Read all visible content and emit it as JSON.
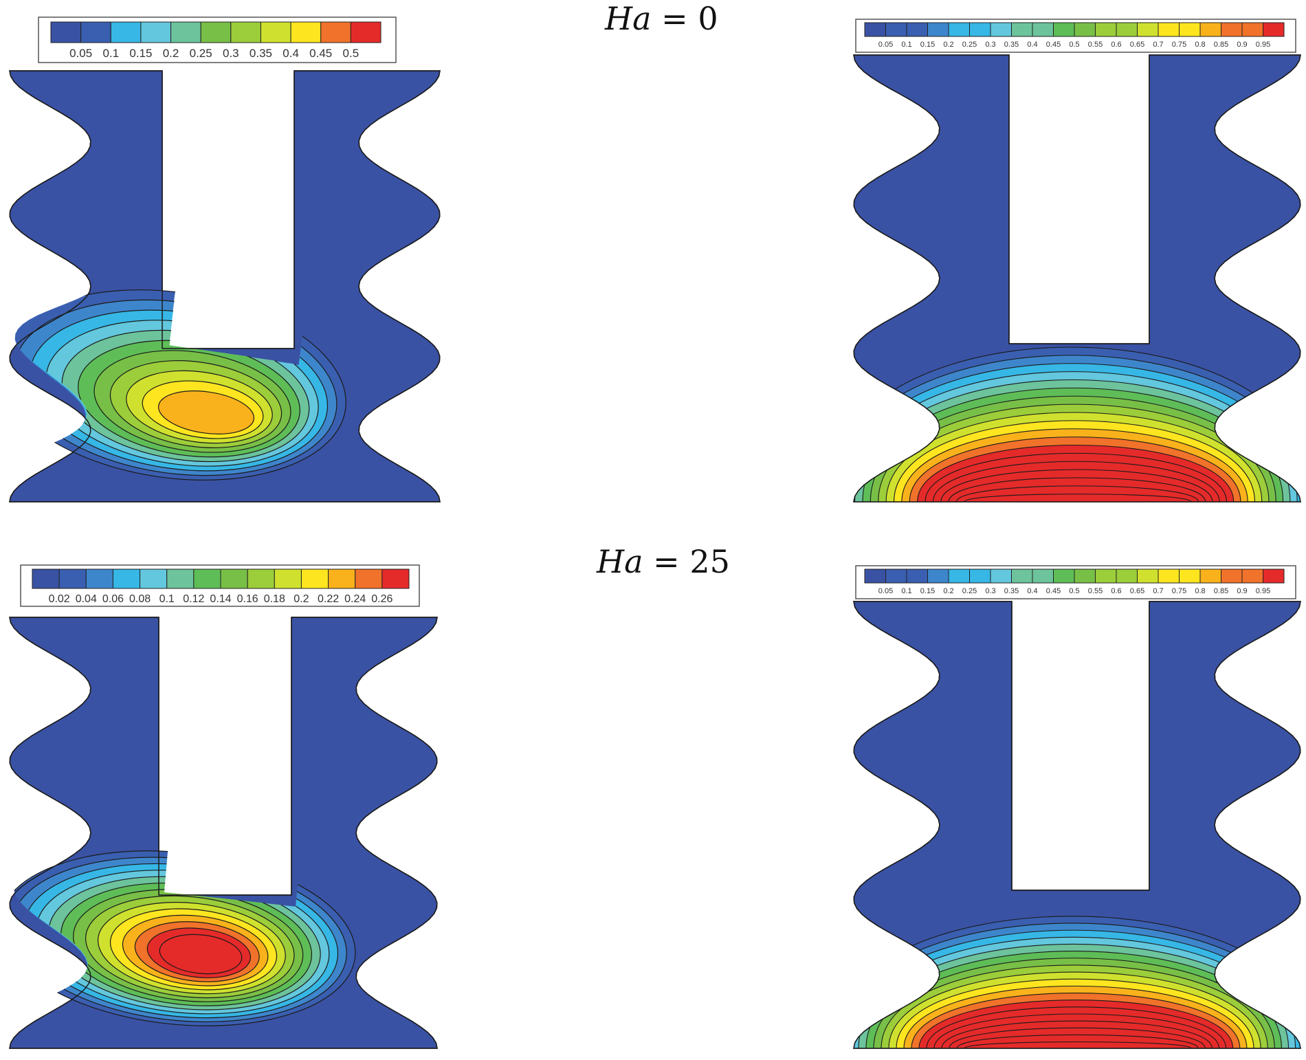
{
  "titles": {
    "row1": {
      "var": "Ha",
      "rest": " = 0"
    },
    "row2": {
      "var": "Ha",
      "rest": " = 25"
    }
  },
  "colors": {
    "shape_fill": "#3a52a4",
    "outline": "#1a1a1a",
    "palette": [
      "#3a52a4",
      "#3a5fb0",
      "#3e86cc",
      "#36b7e6",
      "#63c7dd",
      "#6cc39c",
      "#5ebd57",
      "#78bf47",
      "#9ccd3a",
      "#cfe12e",
      "#fde51f",
      "#f9b21b",
      "#f1722a",
      "#e52a2a"
    ]
  },
  "colorbars": {
    "top_left": [
      "0.05",
      "0.1",
      "0.15",
      "0.2",
      "0.25",
      "0.3",
      "0.35",
      "0.4",
      "0.45",
      "0.5"
    ],
    "top_right": [
      "0.05",
      "0.1",
      "0.15",
      "0.2",
      "0.25",
      "0.3",
      "0.35",
      "0.4",
      "0.45",
      "0.5",
      "0.55",
      "0.6",
      "0.65",
      "0.7",
      "0.75",
      "0.8",
      "0.85",
      "0.9",
      "0.95"
    ],
    "bottom_left": [
      "0.02",
      "0.04",
      "0.06",
      "0.08",
      "0.1",
      "0.12",
      "0.14",
      "0.16",
      "0.18",
      "0.2",
      "0.22",
      "0.24",
      "0.26"
    ],
    "bottom_right": [
      "0.05",
      "0.1",
      "0.15",
      "0.2",
      "0.25",
      "0.3",
      "0.35",
      "0.4",
      "0.45",
      "0.5",
      "0.55",
      "0.6",
      "0.65",
      "0.7",
      "0.75",
      "0.8",
      "0.85",
      "0.9",
      "0.95"
    ]
  }
}
